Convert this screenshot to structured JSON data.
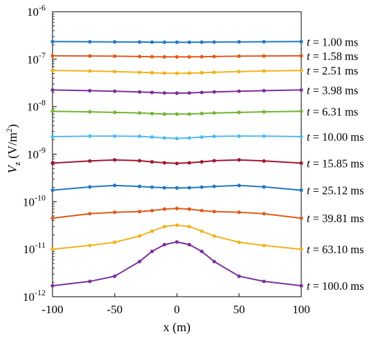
{
  "chart_data": {
    "type": "line",
    "xlabel": "x (m)",
    "ylabel_main": "V",
    "ylabel_sub": "z",
    "ylabel_unit_open": " (V/m",
    "ylabel_unit_power": "2",
    "ylabel_unit_close": ")",
    "y_scale": "log",
    "ylim": [
      1e-12,
      1e-06
    ],
    "xlim": [
      -100,
      100
    ],
    "grid": false,
    "legend": "labels at right end of each line",
    "x_ticks": [
      "-100",
      "-50",
      "0",
      "50",
      "100"
    ],
    "y_ticks": [
      {
        "base": "10",
        "exp": "-12"
      },
      {
        "base": "10",
        "exp": "-11"
      },
      {
        "base": "10",
        "exp": "-10"
      },
      {
        "base": "10",
        "exp": "-9"
      },
      {
        "base": "10",
        "exp": "-8"
      },
      {
        "base": "10",
        "exp": "-7"
      },
      {
        "base": "10",
        "exp": "-6"
      }
    ],
    "x": [
      -100,
      -70,
      -50,
      -30,
      -20,
      -10,
      0,
      10,
      20,
      30,
      50,
      70,
      100
    ],
    "series": [
      {
        "name": "t = 1.00 ms",
        "label_italic": "t",
        "label_rest": " = 1.00 ms",
        "color": "#1f77c9",
        "values": [
          2.35e-07,
          2.33e-07,
          2.32e-07,
          2.3e-07,
          2.29e-07,
          2.28e-07,
          2.28e-07,
          2.28e-07,
          2.29e-07,
          2.3e-07,
          2.32e-07,
          2.33e-07,
          2.35e-07
        ]
      },
      {
        "name": "t = 1.58 ms",
        "label_italic": "t",
        "label_rest": " = 1.58 ms",
        "color": "#e05a1a",
        "values": [
          1.18e-07,
          1.17e-07,
          1.16e-07,
          1.14e-07,
          1.13e-07,
          1.12e-07,
          1.12e-07,
          1.12e-07,
          1.13e-07,
          1.14e-07,
          1.16e-07,
          1.17e-07,
          1.18e-07
        ]
      },
      {
        "name": "t = 2.51 ms",
        "label_italic": "t",
        "label_rest": " = 2.51 ms",
        "color": "#f2b21c",
        "values": [
          5.8e-08,
          5.65e-08,
          5.5e-08,
          5.3e-08,
          5.2e-08,
          5.1e-08,
          5.05e-08,
          5.1e-08,
          5.2e-08,
          5.3e-08,
          5.5e-08,
          5.65e-08,
          5.8e-08
        ]
      },
      {
        "name": "t = 3.98 ms",
        "label_italic": "t",
        "label_rest": " = 3.98 ms",
        "color": "#7b2d9c",
        "values": [
          2.25e-08,
          2.18e-08,
          2.12e-08,
          2.05e-08,
          2e-08,
          1.95e-08,
          1.93e-08,
          1.95e-08,
          2e-08,
          2.05e-08,
          2.12e-08,
          2.18e-08,
          2.25e-08
        ]
      },
      {
        "name": "t = 6.31 ms",
        "label_italic": "t",
        "label_rest": " = 6.31 ms",
        "color": "#6fb52f",
        "values": [
          8e-09,
          7.8e-09,
          7.6e-09,
          7.4e-09,
          7.2e-09,
          7e-09,
          7e-09,
          7e-09,
          7.2e-09,
          7.4e-09,
          7.6e-09,
          7.8e-09,
          8e-09
        ]
      },
      {
        "name": "t = 10.00 ms",
        "label_italic": "t",
        "label_rest": " = 10.00 ms",
        "color": "#4dbbee",
        "values": [
          2.35e-09,
          2.4e-09,
          2.4e-09,
          2.38e-09,
          2.3e-09,
          2.2e-09,
          2.15e-09,
          2.2e-09,
          2.3e-09,
          2.38e-09,
          2.4e-09,
          2.4e-09,
          2.35e-09
        ]
      },
      {
        "name": "t = 15.85 ms",
        "label_italic": "t",
        "label_rest": " = 15.85 ms",
        "color": "#a2142f",
        "values": [
          6.5e-10,
          7.2e-10,
          7.6e-10,
          7.3e-10,
          6.9e-10,
          6.6e-10,
          6.4e-10,
          6.6e-10,
          6.9e-10,
          7.3e-10,
          7.6e-10,
          7.2e-10,
          6.5e-10
        ]
      },
      {
        "name": "t = 25.12 ms",
        "label_italic": "t",
        "label_rest": " = 25.12 ms",
        "color": "#1f77c9",
        "values": [
          1.75e-10,
          2.05e-10,
          2.2e-10,
          2.1e-10,
          2.03e-10,
          1.97e-10,
          1.95e-10,
          1.97e-10,
          2.03e-10,
          2.1e-10,
          2.2e-10,
          2.05e-10,
          1.75e-10
        ]
      },
      {
        "name": "t = 39.81 ms",
        "label_italic": "t",
        "label_rest": " = 39.81 ms",
        "color": "#e05a1a",
        "values": [
          4.5e-11,
          5.6e-11,
          6e-11,
          6.2e-11,
          6.5e-11,
          7e-11,
          7.2e-11,
          7e-11,
          6.5e-11,
          6.2e-11,
          6e-11,
          5.6e-11,
          4.5e-11
        ]
      },
      {
        "name": "t = 63.10 ms",
        "label_italic": "t",
        "label_rest": " = 63.10 ms",
        "color": "#f2b21c",
        "values": [
          1e-11,
          1.2e-11,
          1.4e-11,
          1.9e-11,
          2.4e-11,
          3e-11,
          3.2e-11,
          3e-11,
          2.4e-11,
          1.9e-11,
          1.4e-11,
          1.2e-11,
          1e-11
        ]
      },
      {
        "name": "t = 100.0 ms",
        "label_italic": "t",
        "label_rest": " = 100.0 ms",
        "color": "#7b2d9c",
        "values": [
          1.7e-12,
          2.1e-12,
          2.7e-12,
          5.5e-12,
          9e-12,
          1.25e-11,
          1.42e-11,
          1.25e-11,
          9e-12,
          5.5e-12,
          2.7e-12,
          2.1e-12,
          1.7e-12
        ]
      }
    ]
  }
}
